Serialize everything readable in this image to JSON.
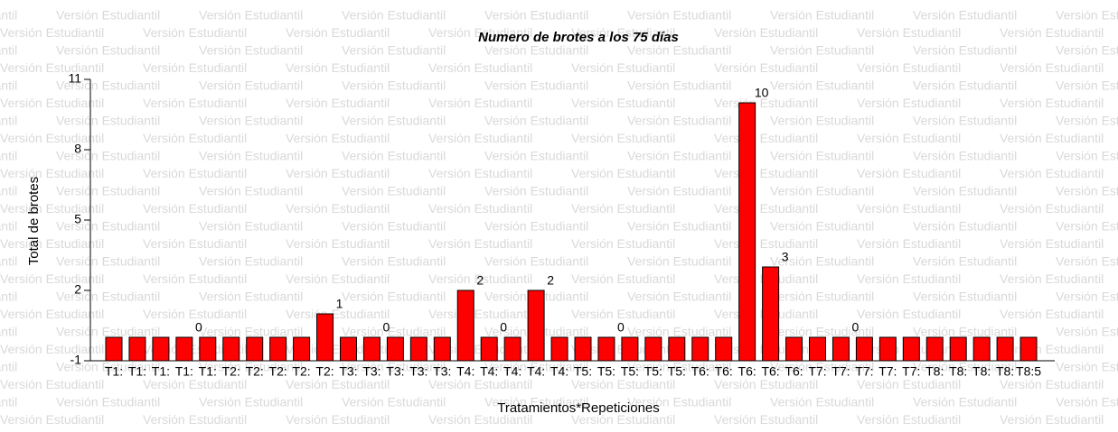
{
  "watermark": "Versión Estudiantil",
  "chart_data": {
    "type": "bar",
    "title": "Numero de brotes a los 75 días",
    "xlabel": "Tratamientos*Repeticiones",
    "ylabel": "Total de brotes",
    "categories": [
      "T1:",
      "T1:",
      "T1:",
      "T1:",
      "T1:",
      "T2:",
      "T2:",
      "T2:",
      "T2:",
      "T2:",
      "T3:",
      "T3:",
      "T3:",
      "T3:",
      "T3:",
      "T4:",
      "T4:",
      "T4:",
      "T4:",
      "T4:",
      "T5:",
      "T5:",
      "T5:",
      "T5:",
      "T5:",
      "T6:",
      "T6:",
      "T6:",
      "T6:",
      "T6:",
      "T7:",
      "T7:",
      "T7:",
      "T7:",
      "T7:",
      "T8:",
      "T8:",
      "T8:",
      "T8:",
      "T8:5"
    ],
    "values": [
      0,
      0,
      0,
      0,
      0,
      0,
      0,
      0,
      0,
      1,
      0,
      0,
      0,
      0,
      0,
      2,
      0,
      0,
      2,
      0,
      0,
      0,
      0,
      0,
      0,
      0,
      0,
      10,
      3,
      0,
      0,
      0,
      0,
      0,
      0,
      0,
      0,
      0,
      0,
      0
    ],
    "value_labels": [
      null,
      null,
      null,
      "0",
      null,
      null,
      null,
      null,
      null,
      "1",
      null,
      "0",
      null,
      null,
      null,
      "2",
      "0",
      null,
      "2",
      null,
      null,
      "0",
      null,
      null,
      null,
      null,
      null,
      "10",
      "3",
      null,
      null,
      "0",
      null,
      null,
      null,
      null,
      null,
      null,
      null,
      null
    ],
    "color": "#ff0000",
    "ylim": [
      -1,
      11
    ],
    "yticks": [
      -1,
      2,
      5,
      8,
      11
    ]
  }
}
